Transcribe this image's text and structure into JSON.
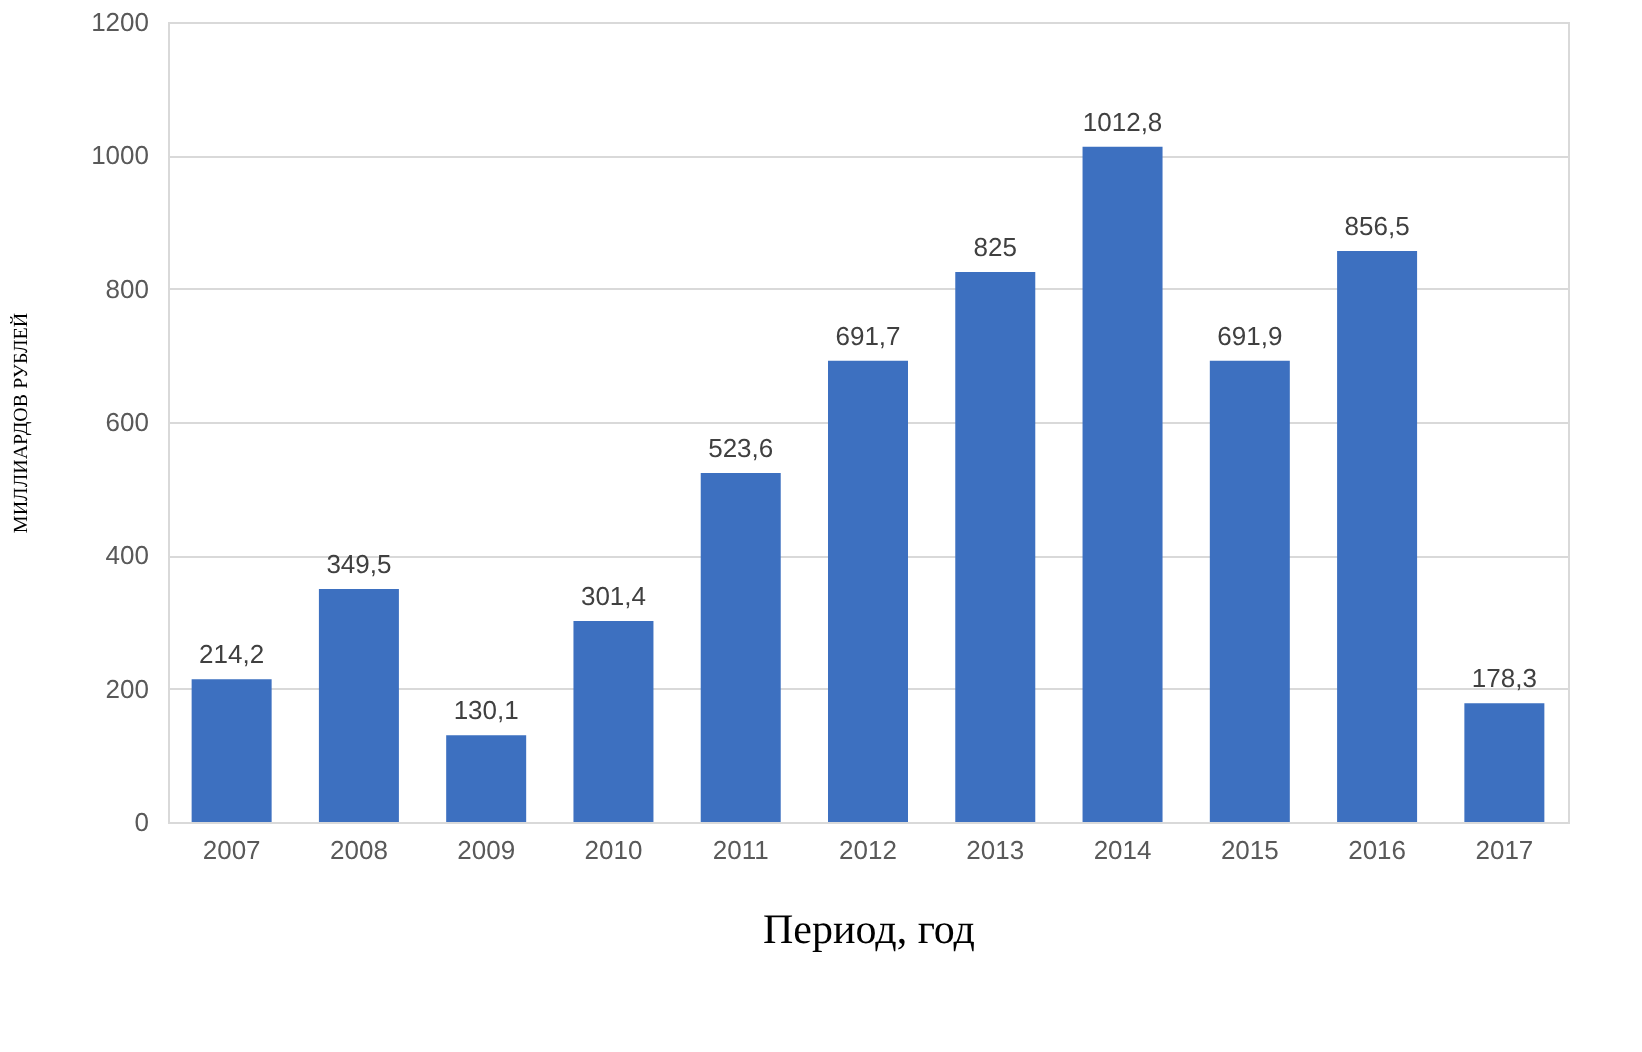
{
  "chart_data": {
    "type": "bar",
    "xlabel": "Период, год",
    "ylabel": "МИЛЛИАРДОВ РУБЛЕЙ",
    "categories": [
      "2007",
      "2008",
      "2009",
      "2010",
      "2011",
      "2012",
      "2013",
      "2014",
      "2015",
      "2016",
      "2017"
    ],
    "values": [
      214.2,
      349.5,
      130.1,
      301.4,
      523.6,
      691.7,
      825,
      1012.8,
      691.9,
      856.5,
      178.3
    ],
    "value_labels": [
      "214,2",
      "349,5",
      "130,1",
      "301,4",
      "523,6",
      "691,7",
      "825",
      "1012,8",
      "691,9",
      "856,5",
      "178,3"
    ],
    "color": "#3d70c0",
    "ylim": [
      0,
      1200
    ],
    "yticks": [
      0,
      200,
      400,
      600,
      800,
      1000,
      1200
    ],
    "grid": "y"
  }
}
